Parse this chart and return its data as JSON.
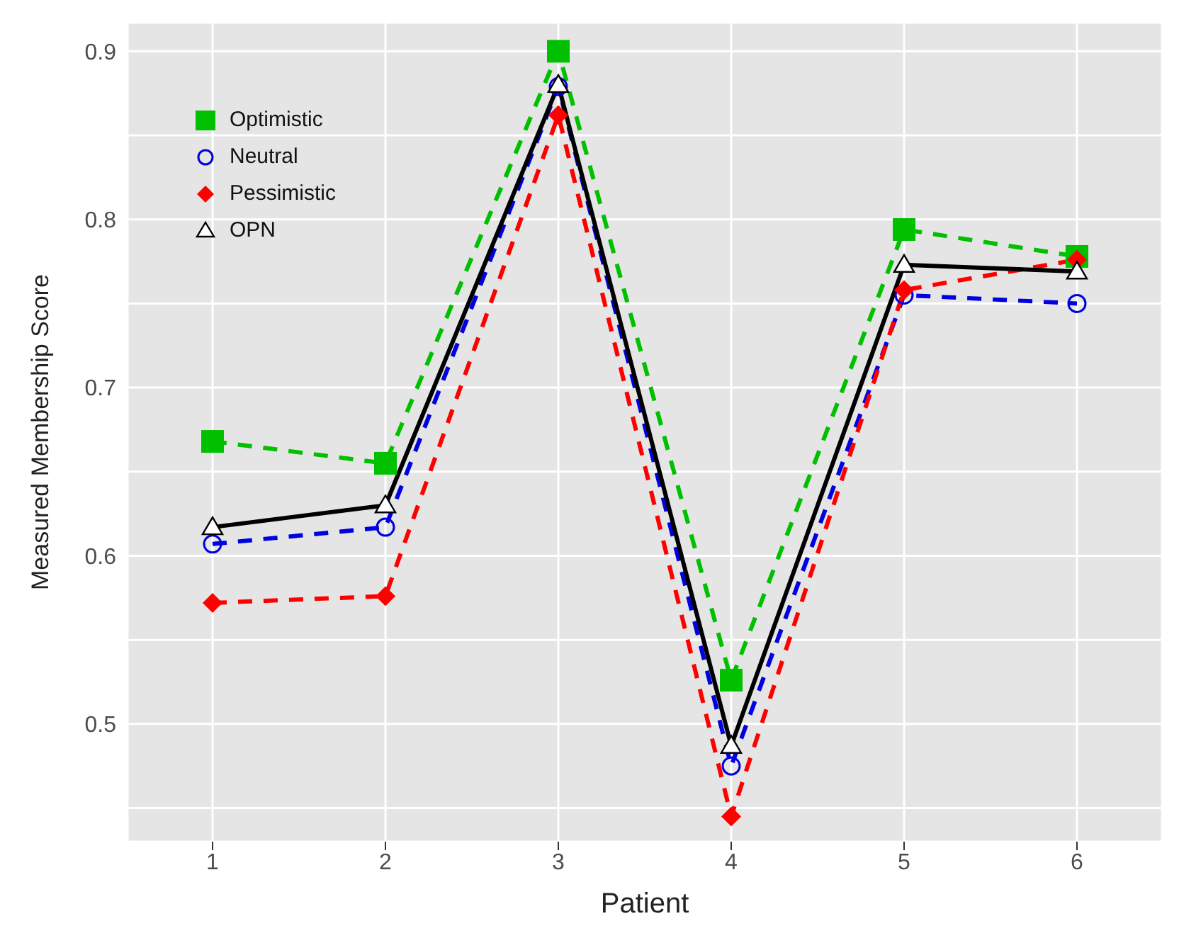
{
  "chart_data": {
    "type": "line",
    "xlabel": "Patient",
    "ylabel": "Measured Membership Score",
    "categories": [
      "1",
      "2",
      "3",
      "4",
      "5",
      "6"
    ],
    "ylim": [
      0.43,
      0.917
    ],
    "yticks": [
      {
        "value": 0.45,
        "label": null
      },
      0.5,
      {
        "value": 0.55,
        "label": null
      },
      0.6,
      {
        "value": 0.65,
        "label": null
      },
      0.7,
      {
        "value": 0.75,
        "label": null
      },
      0.8,
      {
        "value": 0.85,
        "label": null
      },
      0.9
    ],
    "grid": true,
    "legend": "top left",
    "series": [
      {
        "name": "Optimistic",
        "color": "#00c000",
        "marker": "square",
        "line_style": "dashed",
        "values": [
          0.668,
          0.655,
          0.9,
          0.526,
          0.794,
          0.778
        ]
      },
      {
        "name": "Neutral",
        "color": "#0000e0",
        "marker": "circle",
        "line_style": "dashed",
        "values": [
          0.607,
          0.617,
          0.879,
          0.475,
          0.755,
          0.75
        ]
      },
      {
        "name": "Pessimistic",
        "color": "#ff0000",
        "marker": "diamond",
        "line_style": "dashed",
        "values": [
          0.572,
          0.576,
          0.862,
          0.445,
          0.758,
          0.776
        ]
      },
      {
        "name": "OPN",
        "color": "#000000",
        "marker": "triangle",
        "line_style": "solid",
        "values": [
          0.617,
          0.63,
          0.88,
          0.487,
          0.773,
          0.769
        ]
      }
    ]
  }
}
